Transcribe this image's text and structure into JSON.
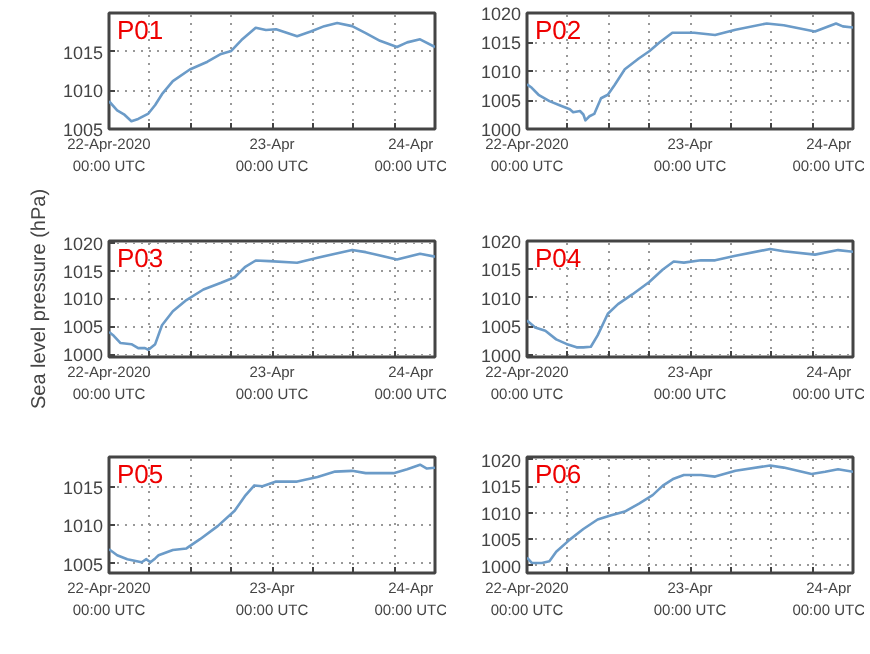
{
  "chart_data": [
    {
      "type": "line",
      "title": "P01",
      "color": "#6b9bc8",
      "grid": true,
      "xlim": [
        "2020-04-22T00:00",
        "2020-04-24T00:00"
      ],
      "ylim": [
        1005,
        1020
      ],
      "yticks": [
        1005,
        1010,
        1015
      ],
      "xticks": [
        {
          "value": "2020-04-22T00:00",
          "label": "22-Apr-2020\n00:00 UTC"
        },
        {
          "value": "2020-04-22T06:00",
          "label": null
        },
        {
          "value": "2020-04-22T12:00",
          "label": null
        },
        {
          "value": "2020-04-22T18:00",
          "label": null
        },
        {
          "value": "2020-04-23T00:00",
          "label": "23-Apr\n00:00 UTC"
        },
        {
          "value": "2020-04-23T06:00",
          "label": null
        },
        {
          "value": "2020-04-23T12:00",
          "label": null
        },
        {
          "value": "2020-04-23T18:00",
          "label": null
        },
        {
          "value": "2020-04-24T00:00",
          "label": "24-Apr\n00:00 UTC"
        }
      ],
      "x": [
        "2020-04-22T00:00",
        "2020-04-22T01:12",
        "2020-04-22T02:12",
        "2020-04-22T03:18",
        "2020-04-22T04:18",
        "2020-04-22T05:48",
        "2020-04-22T06:48",
        "2020-04-22T07:48",
        "2020-04-22T09:24",
        "2020-04-22T11:54",
        "2020-04-22T14:30",
        "2020-04-22T16:30",
        "2020-04-22T18:00",
        "2020-04-22T19:30",
        "2020-04-22T21:36",
        "2020-04-22T23:06",
        "2020-04-23T00:36",
        "2020-04-23T03:42",
        "2020-04-23T05:42",
        "2020-04-23T07:42",
        "2020-04-23T09:36",
        "2020-04-23T11:48",
        "2020-04-23T13:48",
        "2020-04-23T15:54",
        "2020-04-23T18:24",
        "2020-04-23T19:54",
        "2020-04-23T21:48",
        "2020-04-24T00:00"
      ],
      "values": [
        1008.6,
        1007.4,
        1006.9,
        1006.0,
        1006.3,
        1007.0,
        1008.1,
        1009.5,
        1011.2,
        1012.7,
        1013.7,
        1014.7,
        1015.1,
        1016.5,
        1018.1,
        1017.8,
        1017.9,
        1017.0,
        1017.6,
        1018.3,
        1018.7,
        1018.3,
        1017.4,
        1016.4,
        1015.6,
        1016.2,
        1016.6,
        1015.6
      ]
    },
    {
      "type": "line",
      "title": "P02",
      "color": "#6b9bc8",
      "grid": true,
      "xlim": [
        "2020-04-22T00:00",
        "2020-04-24T00:00"
      ],
      "ylim": [
        1000,
        1020
      ],
      "yticks": [
        1000,
        1005,
        1010,
        1015,
        1020
      ],
      "xticks": [
        {
          "value": "2020-04-22T00:00",
          "label": "22-Apr-2020\n00:00 UTC"
        },
        {
          "value": "2020-04-22T06:00",
          "label": null
        },
        {
          "value": "2020-04-22T12:00",
          "label": null
        },
        {
          "value": "2020-04-22T18:00",
          "label": null
        },
        {
          "value": "2020-04-23T00:00",
          "label": "23-Apr\n00:00 UTC"
        },
        {
          "value": "2020-04-23T06:00",
          "label": null
        },
        {
          "value": "2020-04-23T12:00",
          "label": null
        },
        {
          "value": "2020-04-23T18:00",
          "label": null
        },
        {
          "value": "2020-04-24T00:00",
          "label": "24-Apr\n00:00 UTC"
        }
      ],
      "x": [
        "2020-04-22T00:00",
        "2020-04-22T00:42",
        "2020-04-22T01:42",
        "2020-04-22T03:18",
        "2020-04-22T04:48",
        "2020-04-22T06:18",
        "2020-04-22T06:48",
        "2020-04-22T07:48",
        "2020-04-22T08:18",
        "2020-04-22T08:36",
        "2020-04-22T09:12",
        "2020-04-22T09:54",
        "2020-04-22T10:54",
        "2020-04-22T11:54",
        "2020-04-22T12:54",
        "2020-04-22T14:24",
        "2020-04-22T16:30",
        "2020-04-22T18:00",
        "2020-04-22T19:30",
        "2020-04-22T21:24",
        "2020-04-23T00:36",
        "2020-04-23T03:42",
        "2020-04-23T06:42",
        "2020-04-23T11:18",
        "2020-04-23T13:48",
        "2020-04-23T18:24",
        "2020-04-23T21:30",
        "2020-04-23T22:30",
        "2020-04-24T00:00"
      ],
      "values": [
        1007.7,
        1007.1,
        1005.9,
        1004.8,
        1004.1,
        1003.4,
        1002.9,
        1003.1,
        1002.5,
        1001.5,
        1002.2,
        1002.6,
        1005.3,
        1005.9,
        1007.6,
        1010.3,
        1012.2,
        1013.4,
        1014.9,
        1016.6,
        1016.6,
        1016.2,
        1017.1,
        1018.2,
        1017.9,
        1016.8,
        1018.2,
        1017.7,
        1017.5
      ]
    },
    {
      "type": "line",
      "title": "P03",
      "ylabel": "Sea level pressure (hPa)",
      "color": "#6b9bc8",
      "grid": true,
      "xlim": [
        "2020-04-22T00:00",
        "2020-04-24T00:00"
      ],
      "ylim": [
        999.5,
        1020.3
      ],
      "yticks": [
        1000,
        1005,
        1010,
        1015,
        1020
      ],
      "xticks": [
        {
          "value": "2020-04-22T00:00",
          "label": "22-Apr-2020\n00:00 UTC"
        },
        {
          "value": "2020-04-22T06:00",
          "label": null
        },
        {
          "value": "2020-04-22T12:00",
          "label": null
        },
        {
          "value": "2020-04-22T18:00",
          "label": null
        },
        {
          "value": "2020-04-23T00:00",
          "label": "23-Apr\n00:00 UTC"
        },
        {
          "value": "2020-04-23T06:00",
          "label": null
        },
        {
          "value": "2020-04-23T12:00",
          "label": null
        },
        {
          "value": "2020-04-23T18:00",
          "label": null
        },
        {
          "value": "2020-04-24T00:00",
          "label": "24-Apr\n00:00 UTC"
        }
      ],
      "x": [
        "2020-04-22T00:00",
        "2020-04-22T00:42",
        "2020-04-22T01:42",
        "2020-04-22T03:18",
        "2020-04-22T04:18",
        "2020-04-22T05:18",
        "2020-04-22T05:48",
        "2020-04-22T06:48",
        "2020-04-22T07:48",
        "2020-04-22T09:24",
        "2020-04-22T11:24",
        "2020-04-22T13:54",
        "2020-04-22T16:30",
        "2020-04-22T18:30",
        "2020-04-22T20:00",
        "2020-04-22T21:36",
        "2020-04-22T23:36",
        "2020-04-23T03:42",
        "2020-04-23T06:42",
        "2020-04-23T11:48",
        "2020-04-23T13:48",
        "2020-04-23T18:24",
        "2020-04-23T21:48",
        "2020-04-24T00:00"
      ],
      "values": [
        1004.0,
        1003.3,
        1002.0,
        1001.8,
        1001.1,
        1001.1,
        1000.8,
        1001.8,
        1005.2,
        1007.7,
        1009.7,
        1011.6,
        1012.8,
        1013.8,
        1015.6,
        1016.8,
        1016.7,
        1016.4,
        1017.3,
        1018.7,
        1018.3,
        1017.0,
        1018.0,
        1017.5
      ]
    },
    {
      "type": "line",
      "title": "P04",
      "color": "#6b9bc8",
      "grid": true,
      "xlim": [
        "2020-04-22T00:00",
        "2020-04-24T00:00"
      ],
      "ylim": [
        999.6,
        1020
      ],
      "yticks": [
        1000,
        1005,
        1010,
        1015,
        1020
      ],
      "xticks": [
        {
          "value": "2020-04-22T00:00",
          "label": "22-Apr-2020\n00:00 UTC"
        },
        {
          "value": "2020-04-22T06:00",
          "label": null
        },
        {
          "value": "2020-04-22T12:00",
          "label": null
        },
        {
          "value": "2020-04-22T18:00",
          "label": null
        },
        {
          "value": "2020-04-23T00:00",
          "label": "23-Apr\n00:00 UTC"
        },
        {
          "value": "2020-04-23T06:00",
          "label": null
        },
        {
          "value": "2020-04-23T12:00",
          "label": null
        },
        {
          "value": "2020-04-23T18:00",
          "label": null
        },
        {
          "value": "2020-04-24T00:00",
          "label": "24-Apr\n00:00 UTC"
        }
      ],
      "x": [
        "2020-04-22T00:00",
        "2020-04-22T01:12",
        "2020-04-22T02:42",
        "2020-04-22T04:18",
        "2020-04-22T05:48",
        "2020-04-22T07:18",
        "2020-04-22T08:18",
        "2020-04-22T09:24",
        "2020-04-22T10:24",
        "2020-04-22T11:54",
        "2020-04-22T13:24",
        "2020-04-22T15:30",
        "2020-04-22T18:00",
        "2020-04-22T20:00",
        "2020-04-22T21:36",
        "2020-04-22T23:06",
        "2020-04-23T01:36",
        "2020-04-23T03:42",
        "2020-04-23T06:42",
        "2020-04-23T11:48",
        "2020-04-23T13:48",
        "2020-04-23T18:24",
        "2020-04-23T21:48",
        "2020-04-24T00:00"
      ],
      "values": [
        1006.0,
        1004.8,
        1004.2,
        1002.7,
        1001.9,
        1001.3,
        1001.3,
        1001.4,
        1003.4,
        1007.2,
        1008.9,
        1010.6,
        1012.8,
        1015.0,
        1016.4,
        1016.2,
        1016.6,
        1016.6,
        1017.4,
        1018.6,
        1018.2,
        1017.6,
        1018.4,
        1018.1
      ]
    },
    {
      "type": "line",
      "title": "P05",
      "color": "#6b9bc8",
      "grid": true,
      "xlim": [
        "2020-04-22T00:00",
        "2020-04-24T00:00"
      ],
      "ylim": [
        1003.8,
        1018.9
      ],
      "yticks": [
        1005,
        1010,
        1015
      ],
      "xticks": [
        {
          "value": "2020-04-22T00:00",
          "label": "22-Apr-2020\n00:00 UTC"
        },
        {
          "value": "2020-04-22T06:00",
          "label": null
        },
        {
          "value": "2020-04-22T12:00",
          "label": null
        },
        {
          "value": "2020-04-22T18:00",
          "label": null
        },
        {
          "value": "2020-04-23T00:00",
          "label": "23-Apr\n00:00 UTC"
        },
        {
          "value": "2020-04-23T06:00",
          "label": null
        },
        {
          "value": "2020-04-23T12:00",
          "label": null
        },
        {
          "value": "2020-04-23T18:00",
          "label": null
        },
        {
          "value": "2020-04-24T00:00",
          "label": "24-Apr\n00:00 UTC"
        }
      ],
      "x": [
        "2020-04-22T00:00",
        "2020-04-22T01:12",
        "2020-04-22T02:42",
        "2020-04-22T04:48",
        "2020-04-22T05:30",
        "2020-04-22T06:06",
        "2020-04-22T06:48",
        "2020-04-22T07:18",
        "2020-04-22T09:24",
        "2020-04-22T11:24",
        "2020-04-22T13:24",
        "2020-04-22T16:00",
        "2020-04-22T18:30",
        "2020-04-22T20:00",
        "2020-04-22T21:24",
        "2020-04-22T22:36",
        "2020-04-23T00:36",
        "2020-04-23T03:42",
        "2020-04-23T06:42",
        "2020-04-23T09:18",
        "2020-04-23T11:48",
        "2020-04-23T13:48",
        "2020-04-23T17:54",
        "2020-04-23T19:54",
        "2020-04-23T21:48",
        "2020-04-23T22:48",
        "2020-04-24T00:00"
      ],
      "values": [
        1006.9,
        1006.1,
        1005.6,
        1005.2,
        1005.6,
        1005.2,
        1005.7,
        1006.1,
        1006.8,
        1007.0,
        1008.2,
        1009.9,
        1011.9,
        1013.8,
        1015.2,
        1015.1,
        1015.7,
        1015.7,
        1016.3,
        1017.0,
        1017.1,
        1016.8,
        1016.8,
        1017.3,
        1017.9,
        1017.4,
        1017.5
      ]
    },
    {
      "type": "line",
      "title": "P06",
      "color": "#6b9bc8",
      "grid": true,
      "xlim": [
        "2020-04-22T00:00",
        "2020-04-24T00:00"
      ],
      "ylim": [
        998.6,
        1020.5
      ],
      "yticks": [
        1000,
        1005,
        1010,
        1015,
        1020
      ],
      "xticks": [
        {
          "value": "2020-04-22T00:00",
          "label": "22-Apr-2020\n00:00 UTC"
        },
        {
          "value": "2020-04-22T06:00",
          "label": null
        },
        {
          "value": "2020-04-22T12:00",
          "label": null
        },
        {
          "value": "2020-04-22T18:00",
          "label": null
        },
        {
          "value": "2020-04-23T00:00",
          "label": "23-Apr\n00:00 UTC"
        },
        {
          "value": "2020-04-23T06:00",
          "label": null
        },
        {
          "value": "2020-04-23T12:00",
          "label": null
        },
        {
          "value": "2020-04-23T18:00",
          "label": null
        },
        {
          "value": "2020-04-24T00:00",
          "label": "24-Apr\n00:00 UTC"
        }
      ],
      "x": [
        "2020-04-22T00:00",
        "2020-04-22T00:42",
        "2020-04-22T02:12",
        "2020-04-22T03:18",
        "2020-04-22T04:18",
        "2020-04-22T06:18",
        "2020-04-22T08:18",
        "2020-04-22T10:24",
        "2020-04-22T12:24",
        "2020-04-22T14:24",
        "2020-04-22T16:30",
        "2020-04-22T18:30",
        "2020-04-22T20:00",
        "2020-04-22T21:36",
        "2020-04-22T23:06",
        "2020-04-23T01:36",
        "2020-04-23T03:42",
        "2020-04-23T06:42",
        "2020-04-23T11:48",
        "2020-04-23T13:48",
        "2020-04-23T17:54",
        "2020-04-23T19:54",
        "2020-04-23T21:48",
        "2020-04-24T00:00"
      ],
      "values": [
        1001.5,
        1000.5,
        1000.5,
        1000.8,
        1002.6,
        1004.9,
        1006.9,
        1008.7,
        1009.5,
        1010.2,
        1011.7,
        1013.3,
        1015.1,
        1016.4,
        1017.1,
        1017.1,
        1016.8,
        1017.9,
        1018.9,
        1018.5,
        1017.3,
        1017.7,
        1018.2,
        1017.7
      ]
    }
  ]
}
